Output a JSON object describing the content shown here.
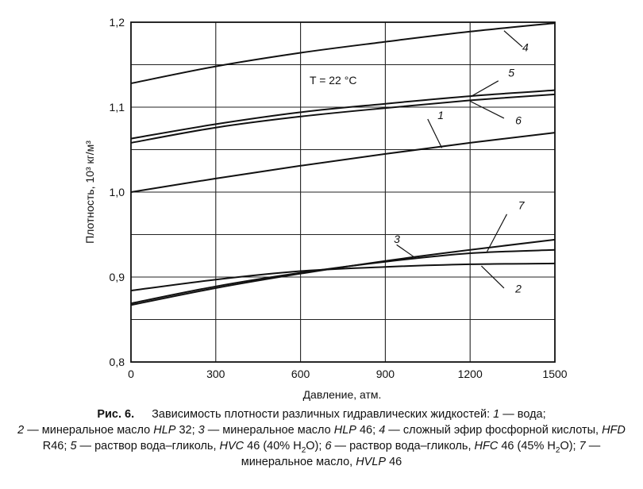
{
  "chart_data": {
    "type": "line",
    "xlabel": "Давление, атм.",
    "ylabel": "Плотность, 10³ кг/м³",
    "xlim": [
      0,
      1500
    ],
    "ylim": [
      0.8,
      1.2
    ],
    "xticks": [
      0,
      300,
      600,
      900,
      1200,
      1500
    ],
    "xtick_labels": [
      "0",
      "300",
      "600",
      "900",
      "1200",
      "1500"
    ],
    "yticks": [
      0.8,
      0.9,
      1.0,
      1.1,
      1.2
    ],
    "ytick_labels": [
      "0,8",
      "0,9",
      "1,0",
      "1,1",
      "1,2"
    ],
    "grid": true,
    "annotation": "T = 22 °C",
    "x": [
      0,
      300,
      600,
      900,
      1200,
      1500
    ],
    "series": [
      {
        "name": "1",
        "values": [
          1.0,
          1.016,
          1.031,
          1.045,
          1.058,
          1.07
        ]
      },
      {
        "name": "2",
        "values": [
          0.884,
          0.897,
          0.907,
          0.912,
          0.915,
          0.916
        ]
      },
      {
        "name": "3",
        "values": [
          0.869,
          0.889,
          0.905,
          0.918,
          0.928,
          0.932
        ]
      },
      {
        "name": "4",
        "values": [
          1.128,
          1.148,
          1.164,
          1.177,
          1.189,
          1.199
        ]
      },
      {
        "name": "5",
        "values": [
          1.063,
          1.08,
          1.094,
          1.104,
          1.113,
          1.12
        ]
      },
      {
        "name": "6",
        "values": [
          1.058,
          1.076,
          1.089,
          1.099,
          1.108,
          1.115
        ]
      },
      {
        "name": "7",
        "values": [
          0.867,
          0.887,
          0.904,
          0.919,
          0.932,
          0.944
        ]
      }
    ]
  },
  "caption": {
    "label": "Рис. 6.",
    "intro": "Зависимость плотности различных гидравлических жидкостей:",
    "n1": "1",
    "t1": " — вода;",
    "n2": "2",
    "t2a": " — минеральное масло ",
    "t2b": "HLP",
    "t2c": " 32;",
    "n3": "3",
    "t3a": " — минеральное масло ",
    "t3b": "HLP",
    "t3c": " 46;",
    "n4": "4",
    "t4a": " — сложный эфир фосфорной кислоты, ",
    "t4b": "HFD",
    "t4c": " R46;",
    "n5": "5",
    "t5a": " — раствор вода–гликоль, ",
    "t5b": "HVC",
    "t5c": " 46 (40% H",
    "t5d": "2",
    "t5e": "O);",
    "n6": "6",
    "t6a": " — раствор вода–гликоль, ",
    "t6b": "HFC",
    "t6c": " 46 (45% H",
    "t6d": "2",
    "t6e": "O);",
    "n7": "7",
    "t7a": " — минеральное масло, ",
    "t7b": "HVLP",
    "t7c": " 46"
  }
}
